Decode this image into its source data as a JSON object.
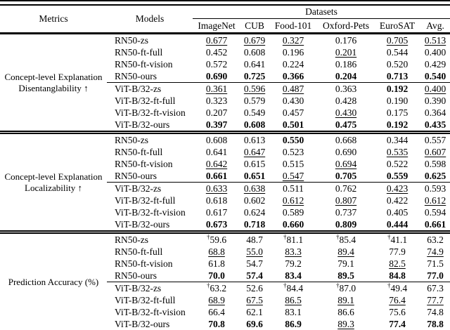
{
  "colors": {
    "background": "#ffffff",
    "text": "#000000",
    "rules": "#000000"
  },
  "table": {
    "header": {
      "metrics": "Metrics",
      "models": "Models",
      "datasets_label": "Datasets",
      "dataset_columns": [
        "ImageNet",
        "CUB",
        "Food-101",
        "Oxford-Pets",
        "EuroSAT",
        "Avg."
      ]
    },
    "value_style_codes": {
      "b": "bold",
      "u": "underline",
      "†": "dagger-prefix"
    },
    "sections": [
      {
        "metric_label_lines": [
          "Concept-level Explanation",
          "Disentanglability ↑"
        ],
        "rows": [
          {
            "model": "RN50-zs",
            "cells": [
              "0.677|u",
              "0.679|u",
              "0.327|u",
              "0.176",
              "0.705|u",
              "0.513|u"
            ]
          },
          {
            "model": "RN50-ft-full",
            "cells": [
              "0.452",
              "0.608",
              "0.196",
              "0.201|u",
              "0.544",
              "0.400"
            ]
          },
          {
            "model": "RN50-ft-vision",
            "cells": [
              "0.572",
              "0.641",
              "0.224",
              "0.186",
              "0.520",
              "0.429"
            ]
          },
          {
            "model": "RN50-ours",
            "cells": [
              "0.690|b",
              "0.725|b",
              "0.366|b",
              "0.204|b",
              "0.713|b",
              "0.540|b"
            ]
          },
          {
            "model": "ViT-B/32-zs",
            "rule_above": true,
            "cells": [
              "0.361|u",
              "0.596|u",
              "0.487|u",
              "0.363",
              "0.192|b",
              "0.400|u"
            ]
          },
          {
            "model": "ViT-B/32-ft-full",
            "cells": [
              "0.323",
              "0.579",
              "0.430",
              "0.428",
              "0.190",
              "0.390"
            ]
          },
          {
            "model": "ViT-B/32-ft-vision",
            "cells": [
              "0.207",
              "0.549",
              "0.457",
              "0.430|u",
              "0.175",
              "0.364"
            ]
          },
          {
            "model": "ViT-B/32-ours",
            "cells": [
              "0.397|b",
              "0.608|b",
              "0.501|b",
              "0.475|b",
              "0.192|b",
              "0.435|b"
            ]
          }
        ]
      },
      {
        "metric_label_lines": [
          "Concept-level Explanation",
          "Localizability ↑"
        ],
        "rows": [
          {
            "model": "RN50-zs",
            "cells": [
              "0.608",
              "0.613",
              "0.550|b",
              "0.668",
              "0.344",
              "0.557"
            ]
          },
          {
            "model": "RN50-ft-full",
            "cells": [
              "0.641",
              "0.647|u",
              "0.523",
              "0.690",
              "0.535|u",
              "0.607|u"
            ]
          },
          {
            "model": "RN50-ft-vision",
            "cells": [
              "0.642|u",
              "0.615",
              "0.515",
              "0.694|u",
              "0.522",
              "0.598"
            ]
          },
          {
            "model": "RN50-ours",
            "cells": [
              "0.661|b",
              "0.651|b",
              "0.547|u",
              "0.705|b",
              "0.559|b",
              "0.625|b"
            ]
          },
          {
            "model": "ViT-B/32-zs",
            "rule_above": true,
            "cells": [
              "0.633|u",
              "0.638|u",
              "0.511",
              "0.762",
              "0.423|u",
              "0.593"
            ]
          },
          {
            "model": "ViT-B/32-ft-full",
            "cells": [
              "0.618",
              "0.602",
              "0.612|u",
              "0.807|u",
              "0.422",
              "0.612|u"
            ]
          },
          {
            "model": "ViT-B/32-ft-vision",
            "cells": [
              "0.617",
              "0.624",
              "0.589",
              "0.737",
              "0.405",
              "0.594"
            ]
          },
          {
            "model": "ViT-B/32-ours",
            "cells": [
              "0.673|b",
              "0.718|b",
              "0.660|b",
              "0.809|b",
              "0.444|b",
              "0.661|b"
            ]
          }
        ]
      },
      {
        "metric_label_lines": [
          "Prediction Accuracy (%)"
        ],
        "rows": [
          {
            "model": "RN50-zs",
            "cells": [
              "†59.6",
              "48.7",
              "†81.1",
              "†85.4",
              "†41.1",
              "63.2"
            ]
          },
          {
            "model": "RN50-ft-full",
            "cells": [
              "68.8|u",
              "55.0|u",
              "83.3|u",
              "89.4|u",
              "77.9",
              "74.9|u"
            ]
          },
          {
            "model": "RN50-ft-vision",
            "cells": [
              "61.8",
              "54.7",
              "79.2",
              "79.1",
              "82.5|u",
              "71.5"
            ]
          },
          {
            "model": "RN50-ours",
            "cells": [
              "70.0|b",
              "57.4|b",
              "83.4|b",
              "89.5|b",
              "84.8|b",
              "77.0|b"
            ]
          },
          {
            "model": "ViT-B/32-zs",
            "rule_above": true,
            "cells": [
              "†63.2",
              "52.6",
              "†84.4",
              "†87.0",
              "†49.4",
              "67.3"
            ]
          },
          {
            "model": "ViT-B/32-ft-full",
            "cells": [
              "68.9|u",
              "67.5|u",
              "86.5|u",
              "89.1|u",
              "76.4|u",
              "77.7|u"
            ]
          },
          {
            "model": "ViT-B/32-ft-vision",
            "cells": [
              "66.4",
              "62.1",
              "83.1",
              "86.6",
              "75.6",
              "74.8"
            ]
          },
          {
            "model": "ViT-B/32-ours",
            "cells": [
              "70.8|b",
              "69.6|b",
              "86.9|b",
              "89.3|u",
              "77.4|b",
              "78.8|b"
            ]
          }
        ]
      }
    ]
  }
}
